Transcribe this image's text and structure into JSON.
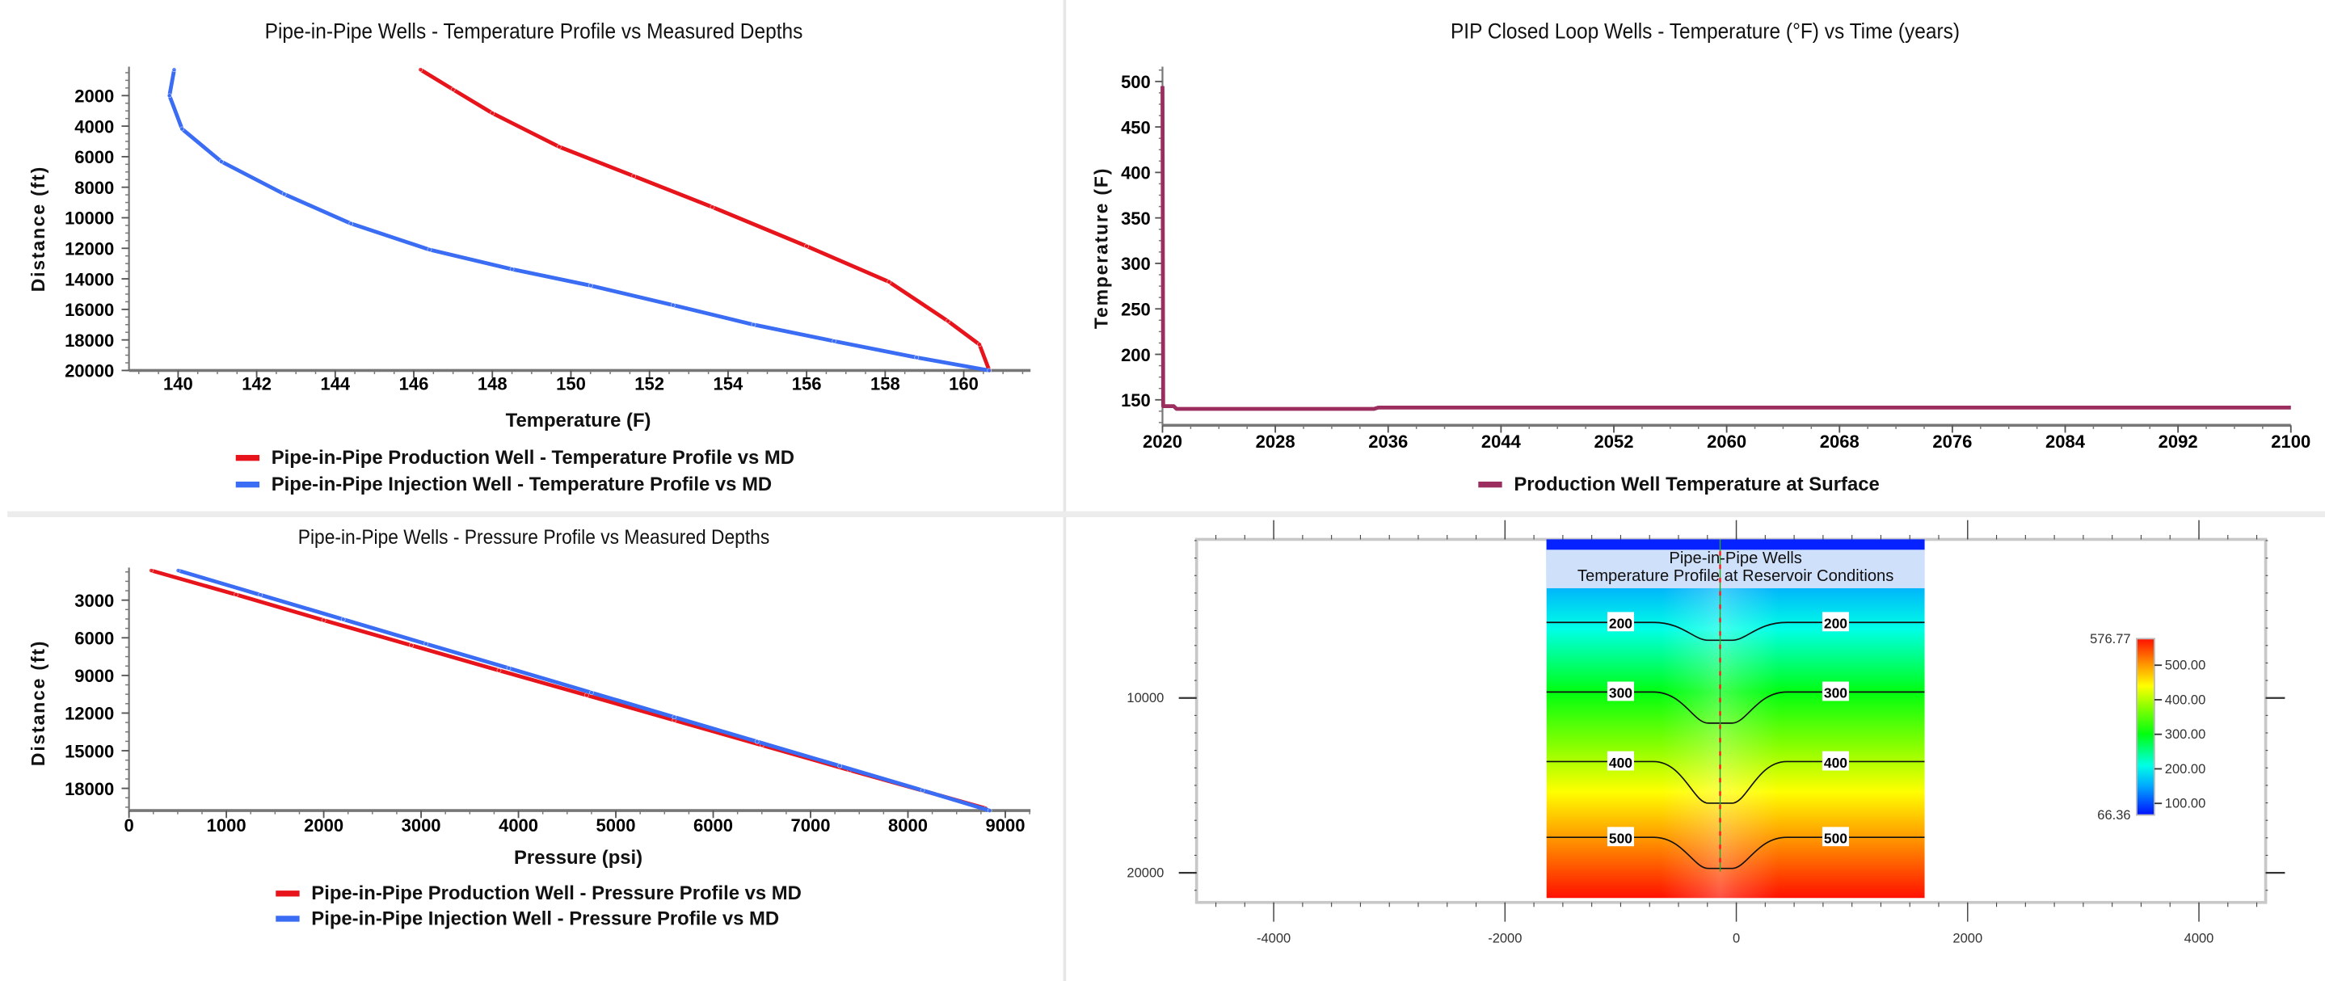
{
  "chart_data": [
    {
      "id": "temp-profile",
      "type": "line",
      "title": "Pipe-in-Pipe Wells - Temperature Profile vs Measured Depths",
      "xlabel": "Temperature (F)",
      "ylabel": "Distance (ft)",
      "xlim": [
        138.75,
        161.7
      ],
      "ylim": [
        300,
        20000
      ],
      "y_inverted": true,
      "xticks": [
        140,
        142,
        144,
        146,
        148,
        150,
        152,
        154,
        156,
        158,
        160
      ],
      "yticks": [
        2000,
        4000,
        6000,
        8000,
        10000,
        12000,
        14000,
        16000,
        18000,
        20000
      ],
      "legend_position": "bottom",
      "series": [
        {
          "name": "Pipe-in-Pipe Production Well - Temperature Profile vs MD",
          "color": "#e8141c",
          "points": [
            [
              146.17,
              300
            ],
            [
              147.0,
              1600
            ],
            [
              148.0,
              3150
            ],
            [
              149.7,
              5350
            ],
            [
              151.6,
              7270
            ],
            [
              153.6,
              9300
            ],
            [
              156.0,
              11860
            ],
            [
              158.1,
              14200
            ],
            [
              159.6,
              16770
            ],
            [
              160.4,
              18300
            ],
            [
              160.65,
              20000
            ]
          ]
        },
        {
          "name": "Pipe-in-Pipe Injection Well - Temperature Profile vs MD",
          "color": "#3a6cf4",
          "points": [
            [
              139.9,
              300
            ],
            [
              139.78,
              2000
            ],
            [
              140.1,
              4180
            ],
            [
              141.1,
              6320
            ],
            [
              142.7,
              8450
            ],
            [
              144.4,
              10380
            ],
            [
              146.4,
              12090
            ],
            [
              148.5,
              13370
            ],
            [
              150.5,
              14440
            ],
            [
              152.6,
              15720
            ],
            [
              154.65,
              17000
            ],
            [
              156.7,
              18080
            ],
            [
              158.8,
              19150
            ],
            [
              160.65,
              20000
            ]
          ]
        }
      ]
    },
    {
      "id": "temp-time",
      "type": "line",
      "title": "PIP Closed Loop Wells - Temperature (°F) vs Time (years)",
      "xlabel": "",
      "ylabel": "Temperature (F)",
      "xlim": [
        2020,
        2100
      ],
      "ylim": [
        122,
        513
      ],
      "y_inverted": false,
      "xticks": [
        2020,
        2028,
        2036,
        2044,
        2052,
        2060,
        2068,
        2076,
        2084,
        2092,
        2100
      ],
      "yticks": [
        150,
        200,
        250,
        300,
        350,
        400,
        450,
        500
      ],
      "legend_position": "bottom",
      "series": [
        {
          "name": "Production Well Temperature at Surface",
          "color": "#9b2d5f",
          "points": [
            [
              2020,
              495
            ],
            [
              2020.05,
              143
            ],
            [
              2020.8,
              143
            ],
            [
              2021,
              140
            ],
            [
              2035,
              140
            ],
            [
              2035.3,
              141.5
            ],
            [
              2100,
              141.5
            ]
          ]
        }
      ]
    },
    {
      "id": "pressure-profile",
      "type": "line",
      "title": "Pipe-in-Pipe Wells - Pressure Profile vs Measured Depths",
      "xlabel": "Pressure (psi)",
      "ylabel": "Distance (ft)",
      "xlim": [
        0,
        9259
      ],
      "ylim": [
        638,
        19770
      ],
      "y_inverted": true,
      "xticks": [
        0,
        1000,
        2000,
        3000,
        4000,
        5000,
        6000,
        7000,
        8000,
        9000
      ],
      "yticks": [
        3000,
        6000,
        9000,
        12000,
        15000,
        18000
      ],
      "legend_position": "bottom",
      "series": [
        {
          "name": "Pipe-in-Pipe Production Well - Pressure Profile vs MD",
          "color": "#e8141c",
          "points": [
            [
              228,
              638
            ],
            [
              1100,
              2560
            ],
            [
              2000,
              4600
            ],
            [
              2900,
              6600
            ],
            [
              3800,
              8600
            ],
            [
              4700,
              10580
            ],
            [
              5600,
              12570
            ],
            [
              6500,
              14560
            ],
            [
              7400,
              16550
            ],
            [
              8300,
              18500
            ],
            [
              8800,
              19600
            ]
          ]
        },
        {
          "name": "Pipe-in-Pipe Injection Well - Pressure Profile vs MD",
          "color": "#3a6cf4",
          "points": [
            [
              505,
              638
            ],
            [
              1350,
              2580
            ],
            [
              2200,
              4530
            ],
            [
              3050,
              6480
            ],
            [
              3900,
              8420
            ],
            [
              4750,
              10370
            ],
            [
              5600,
              12320
            ],
            [
              6450,
              14270
            ],
            [
              7300,
              16210
            ],
            [
              8150,
              18160
            ],
            [
              8840,
              19770
            ]
          ]
        }
      ]
    },
    {
      "id": "reservoir-heatmap",
      "type": "heatmap",
      "title_lines": [
        "Pipe-in-Pipe Wells",
        "Temperature Profile at Reservoir Conditions"
      ],
      "xlim": [
        -4830,
        4420
      ],
      "ylim": [
        930,
        21700
      ],
      "xticks": [
        -4000,
        -2000,
        0,
        2000,
        4000
      ],
      "yticks": [
        10000,
        20000
      ],
      "field_extent_x": [
        -1641,
        1628
      ],
      "field_extent_y": [
        930,
        21440
      ],
      "well_x": -140,
      "contours": [
        {
          "level": "200",
          "far_depth_ft": 5680,
          "well_depth_ft": 6700
        },
        {
          "level": "300",
          "far_depth_ft": 9660,
          "well_depth_ft": 11440
        },
        {
          "level": "400",
          "far_depth_ft": 13640,
          "well_depth_ft": 16020
        },
        {
          "level": "500",
          "far_depth_ft": 17970,
          "well_depth_ft": 19750
        }
      ],
      "colorbar": {
        "min_label": "66.36",
        "max_label": "576.77",
        "min": 66.36,
        "max": 576.77,
        "ticks": [
          {
            "value": 100,
            "label": "100.00"
          },
          {
            "value": 200,
            "label": "200.00"
          },
          {
            "value": 300,
            "label": "300.00"
          },
          {
            "value": 400,
            "label": "400.00"
          },
          {
            "value": 500,
            "label": "500.00"
          }
        ],
        "stops": [
          {
            "value": 66.36,
            "color": "#0010ff"
          },
          {
            "value": 150,
            "color": "#00a8ff"
          },
          {
            "value": 210,
            "color": "#00ffe6"
          },
          {
            "value": 300,
            "color": "#00ff10"
          },
          {
            "value": 380,
            "color": "#8cff00"
          },
          {
            "value": 440,
            "color": "#ffff00"
          },
          {
            "value": 500,
            "color": "#ff9a00"
          },
          {
            "value": 576.77,
            "color": "#ff1000"
          }
        ]
      }
    }
  ]
}
